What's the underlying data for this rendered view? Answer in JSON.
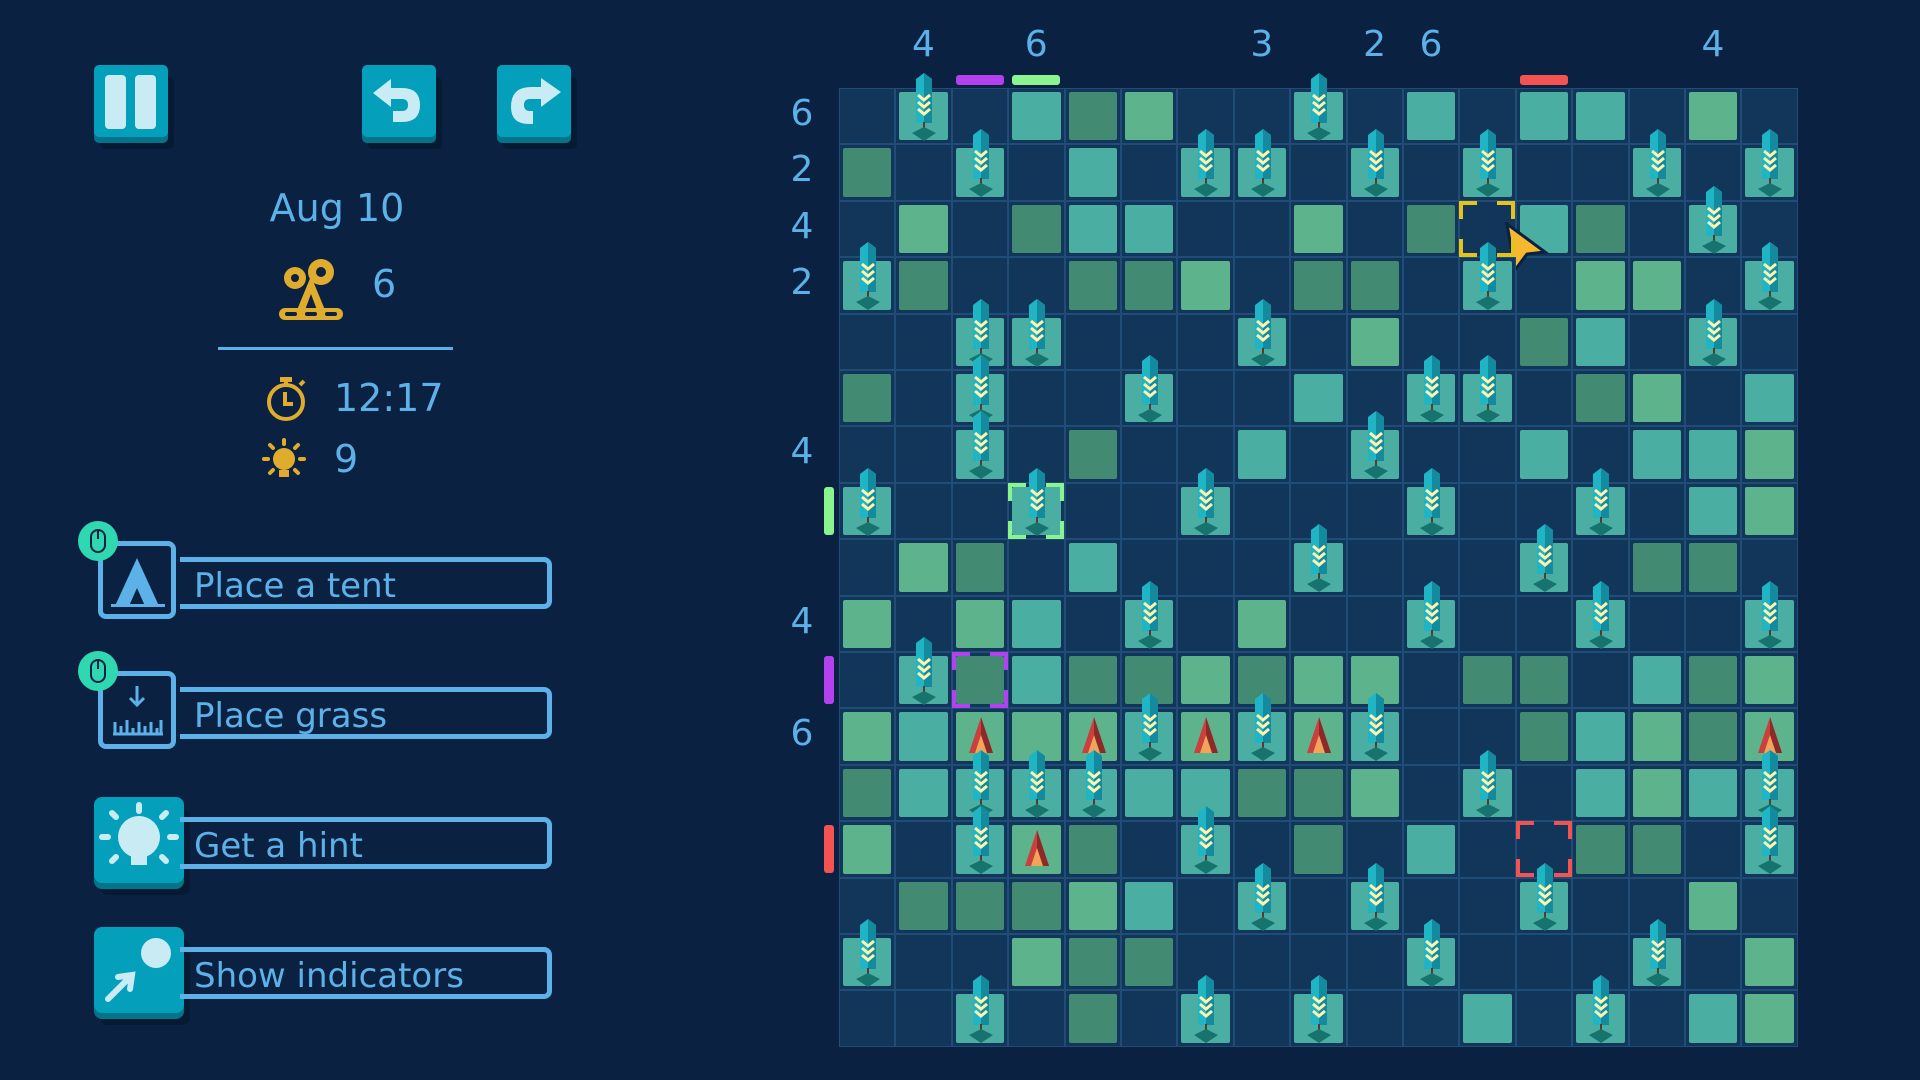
{
  "toolbar": {
    "pause_icon": "pause-icon",
    "undo_icon": "undo-icon",
    "redo_icon": "redo-icon"
  },
  "stats": {
    "date": "Aug 10",
    "tents_needed_icon": "tent-gears-icon",
    "tents_count": "6",
    "timer_icon": "stopwatch-icon",
    "time": "12:17",
    "hint_icon": "lightbulb-icon",
    "hints": "9"
  },
  "actions": [
    {
      "label": "Place a tent",
      "icon": "tent-icon",
      "mouse_hint": "left-click"
    },
    {
      "label": "Place grass",
      "icon": "grass-icon",
      "mouse_hint": "right-click"
    },
    {
      "label": "Get a hint",
      "icon": "lightbulb-icon"
    },
    {
      "label": "Show indicators",
      "icon": "indicator-icon"
    }
  ],
  "colors": {
    "background": "#0a2142",
    "empty": "#12365a",
    "teal": "#4aaea3",
    "light_green": "#5db38b",
    "dark_green": "#428a72",
    "text": "#5cb1e8",
    "accent": "#e0ac2e",
    "purple": "#b341f0",
    "green": "#8af58f",
    "red": "#f55252",
    "yellow": "#e6c21c"
  },
  "board": {
    "legend": {
      ".": "empty",
      "a": "grass-teal",
      "b": "grass-light",
      "c": "grass-dark",
      "T": "tree",
      "A": "tent"
    },
    "cells": [
      ".T.acb..T.a.aa.b.",
      "c.T.a.TT.T.T..T.T",
      ".b.caa..b.c.ac.T.",
      "Tc..ccb.cc.T.bb.T",
      "..TT...T.b..ca.T.",
      "c.T..T..a.TT.cb.a",
      "..T.c..a.T..a.aab",
      "T..T..T...T..T.ab",
      ".bc.a...T...T.cc.",
      "b.ba.T.b..T..T..T",
      ".Tcaccbcbb.cc.acb",
      "baAbATATAT..cabcA",
      "caTTTaaccb.T.abaT",
      "b.TAc.T.c.a..cc.T",
      ".cccba.T.T..T..b.",
      "T..bcc....T...T.b",
      "..T.c.T.T..a.T.ab"
    ],
    "column_clues": [
      "",
      "4",
      "",
      "6",
      "",
      "",
      "",
      "3",
      "",
      "2",
      "6",
      "",
      "",
      "",
      "",
      "4",
      ""
    ],
    "row_clues": [
      "6",
      "2",
      "4",
      "2",
      "",
      "",
      "4",
      "",
      "",
      "4",
      "",
      "6",
      "",
      "",
      "",
      "",
      ""
    ],
    "column_indicators": [
      {
        "col": 2,
        "color": "purple"
      },
      {
        "col": 3,
        "color": "green"
      },
      {
        "col": 12,
        "color": "red"
      }
    ],
    "row_indicators": [
      {
        "row": 7,
        "color": "green"
      },
      {
        "row": 10,
        "color": "purple"
      },
      {
        "row": 13,
        "color": "red"
      }
    ],
    "selections": [
      {
        "row": 2,
        "col": 11,
        "color": "yellow"
      },
      {
        "row": 7,
        "col": 3,
        "color": "green"
      },
      {
        "row": 10,
        "col": 2,
        "color": "purple"
      },
      {
        "row": 13,
        "col": 12,
        "color": "red"
      }
    ]
  }
}
